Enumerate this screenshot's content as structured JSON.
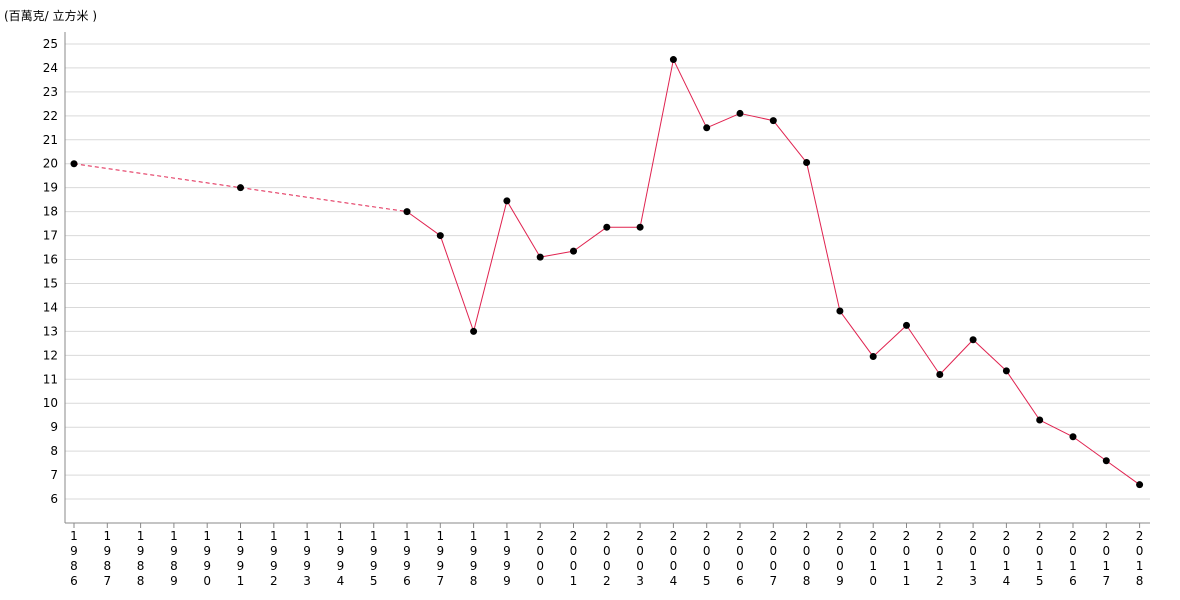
{
  "chart_data": {
    "type": "line",
    "title": "",
    "ylabel": "(百萬克/ 立方米 )",
    "xlabel": "",
    "ylim": [
      5,
      25.5
    ],
    "yticks": [
      6,
      7,
      8,
      9,
      10,
      11,
      12,
      13,
      14,
      15,
      16,
      17,
      18,
      19,
      20,
      21,
      22,
      23,
      24,
      25
    ],
    "grid": true,
    "legend": "none",
    "x": [
      "1986",
      "1987",
      "1988",
      "1989",
      "1990",
      "1991",
      "1992",
      "1993",
      "1994",
      "1995",
      "1996",
      "1997",
      "1998",
      "1999",
      "2000",
      "2001",
      "2002",
      "2003",
      "2004",
      "2005",
      "2006",
      "2007",
      "2008",
      "2009",
      "2010",
      "2011",
      "2012",
      "2013",
      "2014",
      "2015",
      "2016",
      "2017",
      "2018"
    ],
    "series": [
      {
        "color": "#e0224f",
        "values": [
          20,
          null,
          null,
          null,
          null,
          19,
          null,
          null,
          null,
          null,
          18,
          17,
          13,
          18.45,
          16.1,
          16.35,
          17.35,
          17.35,
          24.35,
          21.5,
          22.1,
          21.8,
          20.05,
          13.85,
          11.95,
          13.25,
          11.2,
          12.65,
          11.35,
          9.3,
          8.6,
          7.6,
          6.6
        ]
      }
    ],
    "interpolated_segments_dashed": true
  }
}
